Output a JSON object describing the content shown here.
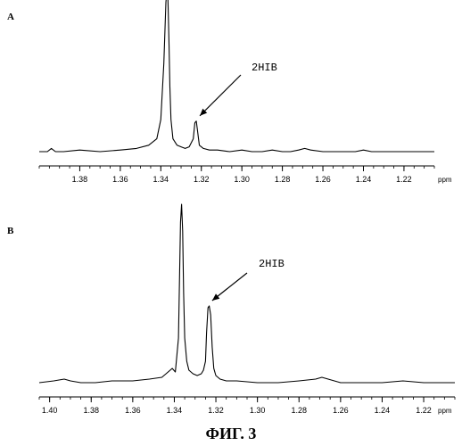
{
  "figure": {
    "caption": "ФИГ. 3"
  },
  "colors": {
    "ink": "#000000",
    "background": "#ffffff"
  },
  "chart_data": [
    {
      "type": "line",
      "panel_label": "A",
      "xlabel": "ppm",
      "reversed_x": true,
      "xlim": [
        1.4,
        1.205
      ],
      "grid": false,
      "tick_values": [
        1.38,
        1.36,
        1.34,
        1.32,
        1.3,
        1.28,
        1.26,
        1.24,
        1.22
      ],
      "tick_labels": [
        "1.38",
        "1.36",
        "1.34",
        "1.32",
        "1.30",
        "1.28",
        "1.26",
        "1.24",
        "1.22"
      ],
      "annotation": {
        "text": "2HIB",
        "points_to_ppm": 1.3225
      },
      "series": [
        {
          "x": [
            1.4,
            1.396,
            1.394,
            1.392,
            1.388,
            1.38,
            1.37,
            1.36,
            1.352,
            1.346,
            1.342,
            1.34,
            1.3385,
            1.3375,
            1.337,
            1.3365,
            1.336,
            1.3355,
            1.335,
            1.334,
            1.332,
            1.33,
            1.328,
            1.326,
            1.324,
            1.3232,
            1.3225,
            1.3218,
            1.321,
            1.319,
            1.316,
            1.312,
            1.306,
            1.3,
            1.295,
            1.29,
            1.285,
            1.28,
            1.276,
            1.272,
            1.269,
            1.266,
            1.26,
            1.25,
            1.244,
            1.24,
            1.236,
            1.23,
            1.22,
            1.21,
            1.205
          ],
          "y": [
            0.0,
            0.0,
            0.02,
            0.0,
            0.0,
            0.01,
            0.0,
            0.01,
            0.02,
            0.04,
            0.08,
            0.2,
            0.55,
            0.93,
            1.0,
            0.95,
            0.7,
            0.4,
            0.2,
            0.08,
            0.04,
            0.03,
            0.02,
            0.03,
            0.08,
            0.18,
            0.19,
            0.12,
            0.04,
            0.02,
            0.01,
            0.01,
            0.0,
            0.01,
            0.0,
            0.0,
            0.01,
            0.0,
            0.0,
            0.01,
            0.02,
            0.01,
            0.0,
            0.0,
            0.0,
            0.01,
            0.0,
            0.0,
            0.0,
            0.0,
            0.0
          ]
        }
      ]
    },
    {
      "type": "line",
      "panel_label": "B",
      "xlabel": "ppm",
      "reversed_x": true,
      "xlim": [
        1.405,
        1.205
      ],
      "grid": false,
      "tick_values": [
        1.4,
        1.38,
        1.36,
        1.34,
        1.32,
        1.3,
        1.28,
        1.26,
        1.24,
        1.22
      ],
      "tick_labels": [
        "1.40",
        "1.38",
        "1.36",
        "1.34",
        "1.32",
        "1.30",
        "1.28",
        "1.26",
        "1.24",
        "1.22"
      ],
      "annotation": {
        "text": "2HIB",
        "points_to_ppm": 1.3235
      },
      "series": [
        {
          "x": [
            1.405,
            1.398,
            1.393,
            1.39,
            1.385,
            1.378,
            1.37,
            1.36,
            1.352,
            1.346,
            1.343,
            1.341,
            1.3395,
            1.338,
            1.337,
            1.3365,
            1.336,
            1.3355,
            1.335,
            1.334,
            1.333,
            1.331,
            1.329,
            1.327,
            1.326,
            1.325,
            1.3245,
            1.3238,
            1.3232,
            1.3225,
            1.3218,
            1.321,
            1.32,
            1.318,
            1.315,
            1.31,
            1.3,
            1.29,
            1.28,
            1.272,
            1.269,
            1.266,
            1.26,
            1.25,
            1.24,
            1.23,
            1.22,
            1.21,
            1.205
          ],
          "y": [
            0.0,
            0.01,
            0.02,
            0.01,
            0.0,
            0.0,
            0.01,
            0.01,
            0.02,
            0.03,
            0.06,
            0.08,
            0.06,
            0.25,
            0.9,
            1.0,
            0.85,
            0.5,
            0.25,
            0.12,
            0.07,
            0.05,
            0.04,
            0.05,
            0.07,
            0.12,
            0.28,
            0.42,
            0.43,
            0.38,
            0.2,
            0.08,
            0.04,
            0.02,
            0.01,
            0.01,
            0.0,
            0.0,
            0.01,
            0.02,
            0.03,
            0.02,
            0.0,
            0.0,
            0.0,
            0.01,
            0.0,
            0.0,
            0.0
          ]
        }
      ]
    }
  ]
}
